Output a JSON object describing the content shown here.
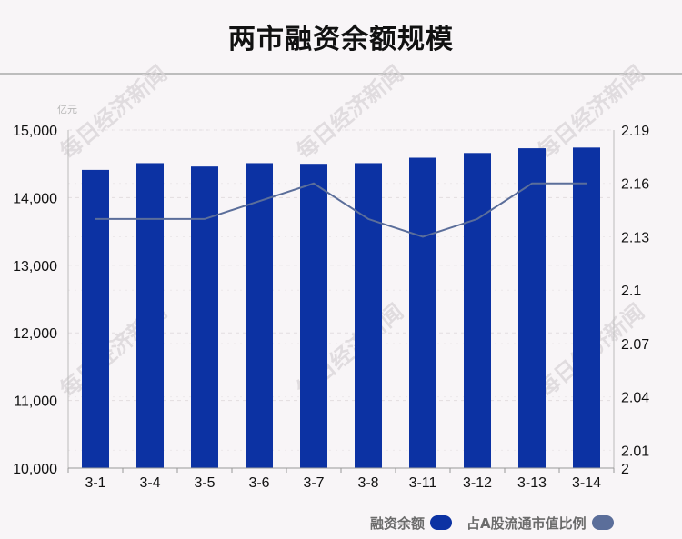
{
  "title": "两市融资余额规模",
  "watermark": "每日经济新闻",
  "chart_data": {
    "type": "bar",
    "categories": [
      "3-1",
      "3-4",
      "3-5",
      "3-6",
      "3-7",
      "3-8",
      "3-11",
      "3-12",
      "3-13",
      "3-14"
    ],
    "series": [
      {
        "name": "融资余额",
        "kind": "bar",
        "axis": "left",
        "color": "#0c32a3",
        "values": [
          14410,
          14510,
          14460,
          14510,
          14500,
          14510,
          14590,
          14660,
          14730,
          14740
        ]
      },
      {
        "name": "占A股流通市值比例",
        "kind": "line",
        "axis": "right",
        "color": "#5b6e9a",
        "values": [
          2.14,
          2.14,
          2.14,
          2.15,
          2.16,
          2.14,
          2.13,
          2.14,
          2.16,
          2.16
        ]
      }
    ],
    "y_left": {
      "unit": "亿元",
      "min": 10000,
      "max": 15000,
      "ticks": [
        "10,000",
        "11,000",
        "12,000",
        "13,000",
        "14,000",
        "15,000"
      ]
    },
    "y_right": {
      "min": 2,
      "max": 2.19,
      "ticks": [
        "2",
        "2.01",
        "2.04",
        "2.07",
        "2.1",
        "2.13",
        "2.16",
        "2.19"
      ]
    },
    "grid": true,
    "legend_position": "bottom-right"
  }
}
